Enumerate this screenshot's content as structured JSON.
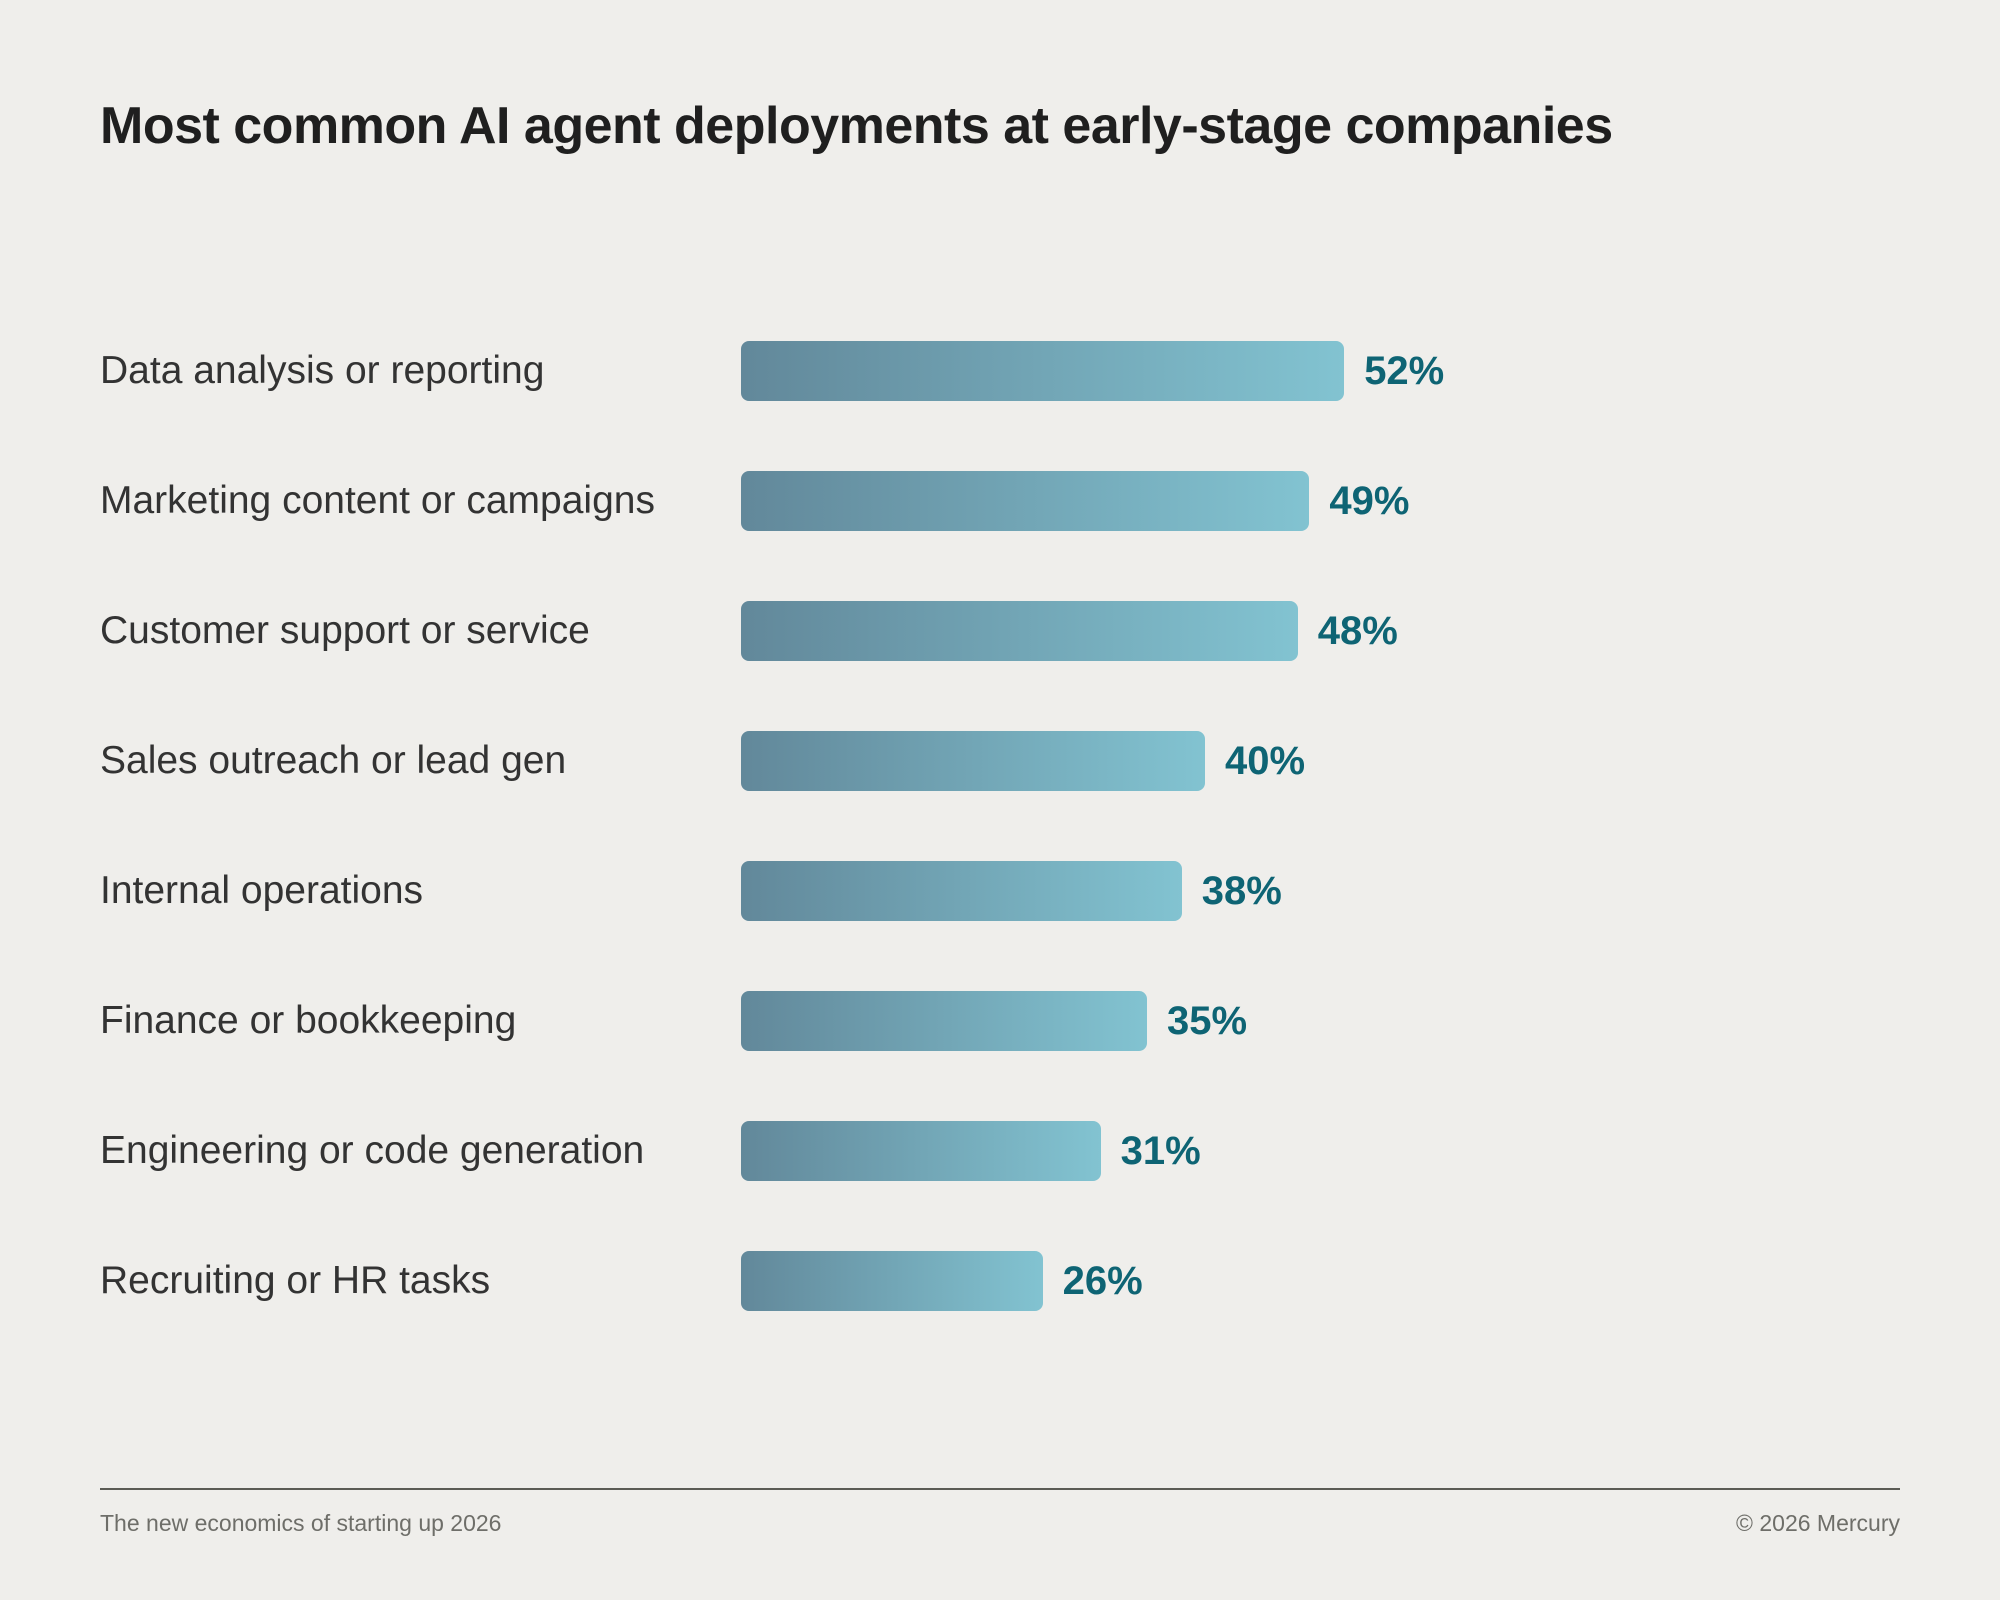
{
  "chart_data": {
    "type": "bar",
    "orientation": "horizontal",
    "title": "Most common AI agent deployments at early-stage companies",
    "categories": [
      "Data analysis or reporting",
      "Marketing content or campaigns",
      "Customer support or service",
      "Sales outreach or lead gen",
      "Internal operations",
      "Finance or bookkeeping",
      "Engineering or code generation",
      "Recruiting or HR tasks"
    ],
    "values": [
      52,
      49,
      48,
      40,
      38,
      35,
      31,
      26
    ],
    "value_labels": [
      "52%",
      "49%",
      "48%",
      "40%",
      "38%",
      "35%",
      "31%",
      "26%"
    ],
    "unit": "%",
    "xlim": [
      0,
      100
    ],
    "grid": false,
    "colors": {
      "bar_start": "#62889A",
      "bar_end": "#82C3D1",
      "value_text": "#0E6474",
      "background": "#EFEEEB"
    }
  },
  "footer": {
    "left": "The new economics of starting up 2026",
    "right": "© 2026 Mercury"
  }
}
